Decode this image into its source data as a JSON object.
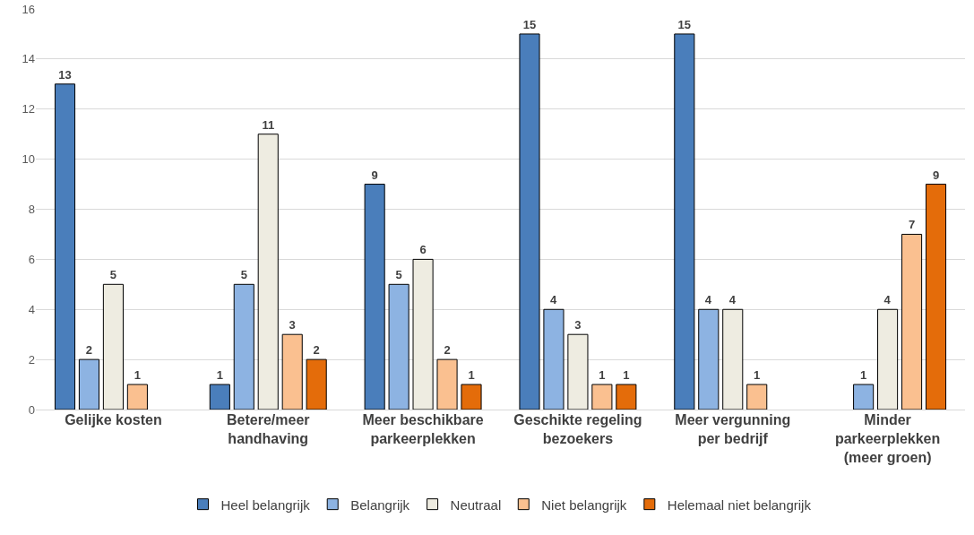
{
  "chart_data": {
    "type": "bar",
    "categories": [
      "Gelijke kosten",
      "Betere/meer handhaving",
      "Meer beschikbare parkeerplekken",
      "Geschikte regeling bezoekers",
      "Meer vergunning per bedrijf",
      "Minder parkeerplekken (meer groen)"
    ],
    "series": [
      {
        "name": "Heel belangrijk",
        "color": "#4a7ebb",
        "values": [
          13,
          1,
          9,
          15,
          15,
          null
        ]
      },
      {
        "name": "Belangrijk",
        "color": "#8db3e2",
        "values": [
          2,
          5,
          5,
          4,
          4,
          1
        ]
      },
      {
        "name": "Neutraal",
        "color": "#eeece1",
        "values": [
          5,
          11,
          6,
          3,
          4,
          4
        ]
      },
      {
        "name": "Niet belangrijk",
        "color": "#fac090",
        "values": [
          1,
          3,
          2,
          1,
          1,
          7
        ]
      },
      {
        "name": "Helemaal niet belangrijk",
        "color": "#e46c0a",
        "values": [
          null,
          2,
          1,
          1,
          null,
          9
        ]
      }
    ],
    "ylim": [
      0,
      16
    ],
    "yticks": [
      0,
      2,
      4,
      6,
      8,
      10,
      12,
      14,
      16
    ],
    "grid": "y",
    "legend": "bottom",
    "data_labels": true
  }
}
